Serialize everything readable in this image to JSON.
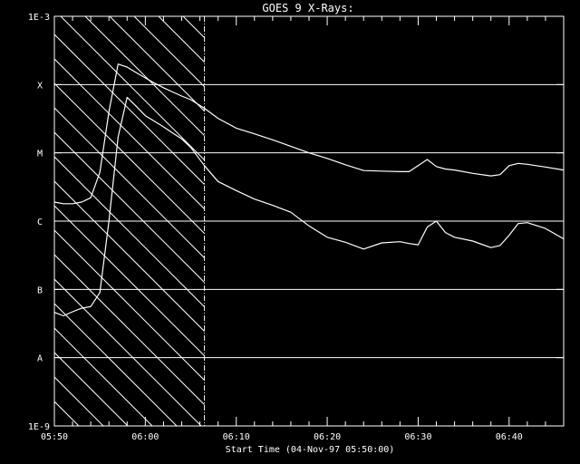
{
  "chart_data": {
    "type": "line",
    "title": "GOES 9 X-Rays:",
    "xlabel": "Start Time (04-Nov-97 05:50:00)",
    "ylabel": "",
    "x_range": [
      "05:50",
      "06:46"
    ],
    "ylim": [
      1e-09,
      0.001
    ],
    "y_scale": "log",
    "x_ticks": [
      "05:50",
      "06:00",
      "06:10",
      "06:20",
      "06:30",
      "06:40"
    ],
    "y_ticks": [
      {
        "label": "1E-9",
        "value": 1e-09
      },
      {
        "label": "A",
        "value": 1e-08
      },
      {
        "label": "B",
        "value": 1e-07
      },
      {
        "label": "C",
        "value": 1e-06
      },
      {
        "label": "M",
        "value": 1e-05
      },
      {
        "label": "X",
        "value": 0.0001
      },
      {
        "label": "1E-3",
        "value": 0.001
      }
    ],
    "grid": true,
    "shaded_region": {
      "start": "05:50",
      "end": "06:06.5"
    },
    "series": [
      {
        "x": [
          "05:50",
          "05:51",
          "05:52",
          "05:53",
          "05:54",
          "05:55",
          "05:56",
          "05:57",
          "05:58",
          "05:59",
          "06:00",
          "06:01",
          "06:02",
          "06:03",
          "06:04",
          "06:05",
          "06:06.5",
          "06:08",
          "06:10",
          "06:12",
          "06:14",
          "06:16",
          "06:18",
          "06:20",
          "06:22",
          "06:24",
          "06:26",
          "06:28",
          "06:29",
          "06:30",
          "06:31",
          "06:32",
          "06:33",
          "06:34",
          "06:36",
          "06:38",
          "06:39",
          "06:40",
          "06:41",
          "06:42",
          "06:44",
          "06:46"
        ],
        "values": [
          1.9e-06,
          1.8e-06,
          1.8e-06,
          1.9e-06,
          2.2e-06,
          5.2e-06,
          4e-05,
          0.0002,
          0.00018,
          0.00015,
          0.000125,
          0.000105,
          9e-05,
          7.8e-05,
          6.8e-05,
          6e-05,
          4.5e-05,
          3.2e-05,
          2.3e-05,
          1.9e-05,
          1.55e-05,
          1.25e-05,
          1e-05,
          8.3e-06,
          6.7e-06,
          5.5e-06,
          5.4e-06,
          5.3e-06,
          5.3e-06,
          6.5e-06,
          8e-06,
          6.3e-06,
          5.8e-06,
          5.6e-06,
          5e-06,
          4.6e-06,
          4.8e-06,
          6.5e-06,
          7e-06,
          6.8e-06,
          6.2e-06,
          5.6e-06
        ]
      },
      {
        "x": [
          "05:50",
          "05:51",
          "05:52",
          "05:53",
          "05:54",
          "05:55",
          "05:56",
          "05:57",
          "05:58",
          "05:59",
          "06:00",
          "06:01",
          "06:02",
          "06:03",
          "06:04",
          "06:05",
          "06:06.5",
          "06:08",
          "06:10",
          "06:12",
          "06:14",
          "06:16",
          "06:18",
          "06:20",
          "06:22",
          "06:24",
          "06:26",
          "06:28",
          "06:29",
          "06:30",
          "06:31",
          "06:32",
          "06:33",
          "06:34",
          "06:36",
          "06:38",
          "06:39",
          "06:40",
          "06:41",
          "06:42",
          "06:44",
          "06:46"
        ],
        "values": [
          4.6e-08,
          4.1e-08,
          4.7e-08,
          5.3e-08,
          5.6e-08,
          9e-08,
          1e-06,
          1.7e-05,
          6.5e-05,
          4.8e-05,
          3.5e-05,
          2.9e-05,
          2.4e-05,
          1.95e-05,
          1.6e-05,
          1.2e-05,
          6.5e-06,
          3.8e-06,
          2.8e-06,
          2.1e-06,
          1.7e-06,
          1.35e-06,
          8.5e-07,
          5.8e-07,
          4.9e-07,
          3.9e-07,
          4.8e-07,
          5e-07,
          4.7e-07,
          4.5e-07,
          8.2e-07,
          1e-06,
          6.8e-07,
          5.8e-07,
          5.1e-07,
          4.1e-07,
          4.4e-07,
          6.2e-07,
          9.2e-07,
          9.5e-07,
          7.8e-07,
          5.5e-07
        ]
      }
    ]
  }
}
